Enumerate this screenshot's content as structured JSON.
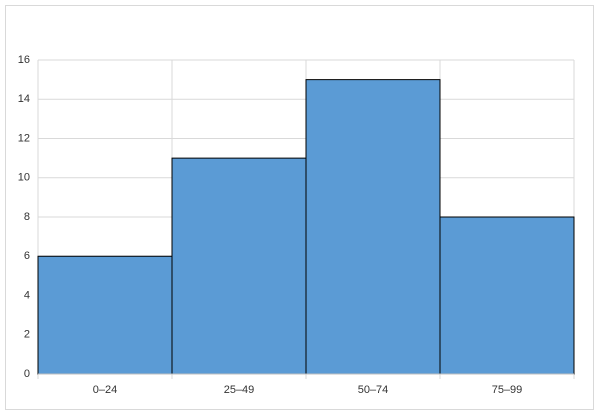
{
  "chart_data": {
    "type": "bar",
    "categories": [
      "0–24",
      "25–49",
      "50–74",
      "75–99"
    ],
    "values": [
      6,
      11,
      15,
      8
    ],
    "color": "#5b9bd5",
    "ylim": [
      0,
      16
    ],
    "yticks": [
      0,
      2,
      4,
      6,
      8,
      10,
      12,
      14,
      16
    ],
    "grid": true
  }
}
